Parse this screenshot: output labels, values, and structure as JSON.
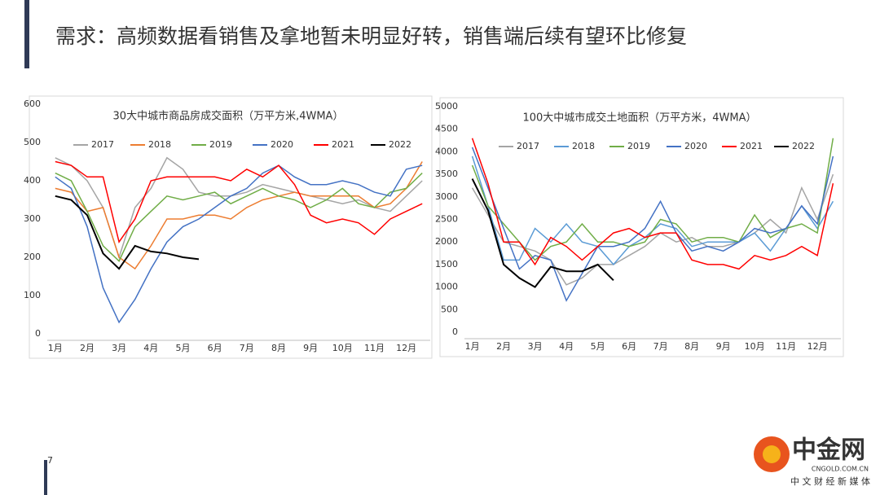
{
  "title": "需求：高频数据看销售及拿地暂未明显好转，销售端后续有望环比修复",
  "page_number": "7",
  "watermark": {
    "brand": "中金网",
    "site": "CNGOLD.COM.CN",
    "slogan": "中 文 财 经 新 媒 体"
  },
  "chart_data": [
    {
      "type": "line",
      "title": "30大中城市商品房成交面积（万平方米,4WMA）",
      "categories": [
        "1月",
        null,
        "2月",
        null,
        "3月",
        null,
        "4月",
        null,
        "5月",
        null,
        "6月",
        null,
        "7月",
        null,
        "8月",
        null,
        "9月",
        null,
        "10月",
        null,
        "11月",
        null,
        "12月",
        null
      ],
      "ylim": [
        0,
        600
      ],
      "yticks": [
        0,
        100,
        200,
        300,
        400,
        500,
        600
      ],
      "grid": false,
      "series": [
        {
          "name": "2017",
          "color": "#a5a5a5",
          "values": [
            460,
            440,
            400,
            330,
            200,
            330,
            380,
            460,
            430,
            370,
            360,
            360,
            370,
            390,
            380,
            370,
            360,
            350,
            340,
            350,
            330,
            320,
            360,
            400
          ]
        },
        {
          "name": "2018",
          "color": "#ed7d31",
          "values": [
            380,
            370,
            320,
            330,
            200,
            170,
            230,
            300,
            300,
            310,
            310,
            300,
            330,
            350,
            360,
            370,
            360,
            360,
            360,
            360,
            330,
            340,
            380,
            450
          ]
        },
        {
          "name": "2019",
          "color": "#70ad47",
          "values": [
            420,
            400,
            320,
            230,
            190,
            280,
            320,
            360,
            350,
            360,
            370,
            340,
            360,
            380,
            360,
            350,
            330,
            350,
            380,
            340,
            330,
            370,
            380,
            420
          ]
        },
        {
          "name": "2020",
          "color": "#4472c4",
          "values": [
            410,
            380,
            280,
            120,
            30,
            90,
            170,
            240,
            280,
            300,
            330,
            360,
            380,
            420,
            440,
            410,
            390,
            390,
            400,
            390,
            370,
            360,
            430,
            440
          ]
        },
        {
          "name": "2021",
          "color": "#ff0000",
          "values": [
            450,
            440,
            410,
            410,
            240,
            300,
            400,
            410,
            410,
            410,
            410,
            400,
            430,
            410,
            440,
            390,
            310,
            290,
            300,
            290,
            260,
            300,
            320,
            340
          ]
        },
        {
          "name": "2022",
          "color": "#000000",
          "values": [
            360,
            350,
            310,
            210,
            170,
            230,
            215,
            210,
            200,
            195,
            null,
            null,
            null,
            null,
            null,
            null,
            null,
            null,
            null,
            null,
            null,
            null,
            null,
            null
          ]
        }
      ]
    },
    {
      "type": "line",
      "title": "100大中城市成交土地面积（万平方米，4WMA）",
      "categories": [
        "1月",
        null,
        "2月",
        null,
        "3月",
        null,
        "4月",
        null,
        "5月",
        null,
        "6月",
        null,
        "7月",
        null,
        "8月",
        null,
        "9月",
        null,
        "10月",
        null,
        "11月",
        null,
        "12月",
        null
      ],
      "ylim": [
        0,
        5000
      ],
      "yticks": [
        0,
        500,
        1000,
        1500,
        2000,
        2500,
        3000,
        3500,
        4000,
        4500,
        5000
      ],
      "grid": false,
      "series": [
        {
          "name": "2017",
          "color": "#a5a5a5",
          "values": [
            3200,
            2600,
            2000,
            1900,
            1800,
            1600,
            1050,
            1200,
            1500,
            1500,
            1700,
            1900,
            2200,
            2000,
            2100,
            1900,
            1900,
            2000,
            2200,
            2500,
            2200,
            3200,
            2500,
            3500
          ]
        },
        {
          "name": "2018",
          "color": "#5b9bd5",
          "values": [
            3900,
            2800,
            1600,
            1600,
            2300,
            2000,
            2400,
            2000,
            1900,
            1500,
            1900,
            2100,
            2400,
            2300,
            1900,
            2000,
            2000,
            2000,
            2200,
            1800,
            2300,
            2800,
            2300,
            2900
          ]
        },
        {
          "name": "2019",
          "color": "#70ad47",
          "values": [
            3700,
            2800,
            2400,
            2000,
            1600,
            1900,
            2000,
            2400,
            2000,
            2000,
            1900,
            2000,
            2500,
            2400,
            2000,
            2100,
            2100,
            2000,
            2600,
            2100,
            2300,
            2400,
            2200,
            4300
          ]
        },
        {
          "name": "2020",
          "color": "#4472c4",
          "values": [
            4100,
            3200,
            2300,
            1400,
            1700,
            1600,
            700,
            1300,
            1900,
            1900,
            2000,
            2300,
            2900,
            2200,
            1800,
            1900,
            1800,
            2000,
            2300,
            2200,
            2300,
            2800,
            2400,
            3900
          ]
        },
        {
          "name": "2021",
          "color": "#ff0000",
          "values": [
            4300,
            3300,
            2000,
            2000,
            1500,
            2100,
            1900,
            1600,
            1900,
            2200,
            2300,
            2100,
            2200,
            2200,
            1600,
            1500,
            1500,
            1400,
            1700,
            1600,
            1700,
            1900,
            1700,
            3300
          ]
        },
        {
          "name": "2022",
          "color": "#000000",
          "values": [
            3400,
            2700,
            1500,
            1200,
            1000,
            1450,
            1350,
            1350,
            1500,
            1150,
            null,
            null,
            null,
            null,
            null,
            null,
            null,
            null,
            null,
            null,
            null,
            null,
            null,
            null
          ]
        }
      ]
    }
  ]
}
